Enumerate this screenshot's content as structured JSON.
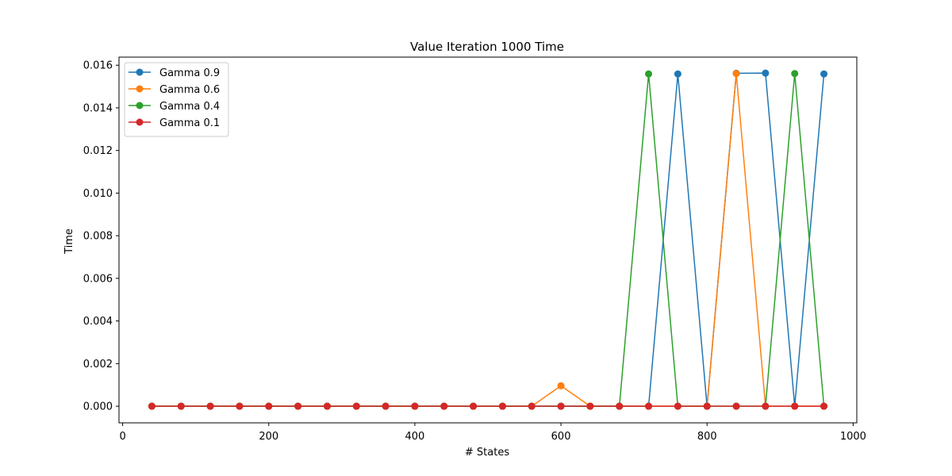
{
  "chart_data": {
    "type": "line",
    "title": "Value Iteration 1000  Time",
    "xlabel": "# States",
    "ylabel": "Time",
    "xlim": [
      -5,
      1005
    ],
    "ylim": [
      -0.00078,
      0.01638
    ],
    "xticks": [
      0,
      200,
      400,
      600,
      800,
      1000
    ],
    "yticks": [
      0.0,
      0.002,
      0.004,
      0.006,
      0.008,
      0.01,
      0.012,
      0.014,
      0.016
    ],
    "xtick_labels": [
      "0",
      "200",
      "400",
      "600",
      "800",
      "1000"
    ],
    "ytick_labels": [
      "0.000",
      "0.002",
      "0.004",
      "0.006",
      "0.008",
      "0.010",
      "0.012",
      "0.014",
      "0.016"
    ],
    "legend_position": "upper-left",
    "grid": false,
    "x": [
      40,
      80,
      120,
      160,
      200,
      240,
      280,
      320,
      360,
      400,
      440,
      480,
      520,
      560,
      600,
      640,
      680,
      720,
      760,
      800,
      840,
      880,
      920,
      960
    ],
    "series": [
      {
        "name": "Gamma 0.9",
        "color": "#1f77b4",
        "values": [
          0,
          0,
          0,
          0,
          0,
          0,
          0,
          0,
          0,
          0,
          0,
          0,
          0,
          0,
          0,
          0,
          0,
          0,
          0.01559,
          0,
          0.01562,
          0.01563,
          0,
          0.01559
        ]
      },
      {
        "name": "Gamma 0.6",
        "color": "#ff7f0e",
        "values": [
          0,
          0,
          0,
          0,
          0,
          0,
          0,
          0,
          0,
          0,
          0,
          0,
          0,
          0,
          0.00096,
          0,
          0,
          0,
          0,
          0,
          0.01561,
          0,
          0,
          0
        ]
      },
      {
        "name": "Gamma 0.4",
        "color": "#2ca02c",
        "values": [
          0,
          0,
          0,
          0,
          0,
          0,
          0,
          0,
          0,
          0,
          0,
          0,
          0,
          0,
          0,
          0,
          0,
          0.01559,
          0,
          0,
          0,
          0,
          0.01561,
          0
        ]
      },
      {
        "name": "Gamma 0.1",
        "color": "#d62728",
        "values": [
          0,
          0,
          0,
          0,
          0,
          0,
          0,
          0,
          0,
          0,
          0,
          0,
          0,
          0,
          0,
          0,
          0,
          0,
          0,
          0,
          0,
          0,
          0,
          0
        ]
      }
    ]
  }
}
